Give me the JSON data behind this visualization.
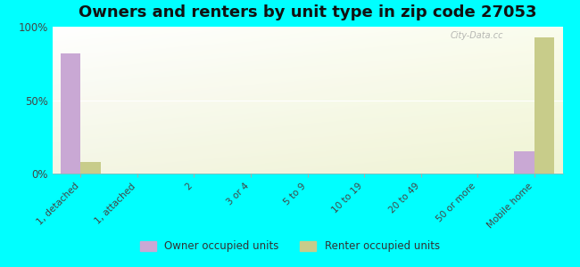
{
  "title": "Owners and renters by unit type in zip code 27053",
  "categories": [
    "1, detached",
    "1, attached",
    "2",
    "3 or 4",
    "5 to 9",
    "10 to 19",
    "20 to 49",
    "50 or more",
    "Mobile home"
  ],
  "owner_values": [
    82,
    0,
    0,
    0,
    0,
    0,
    0,
    0,
    15
  ],
  "renter_values": [
    8,
    0,
    0,
    0,
    0,
    0,
    0,
    0,
    93
  ],
  "owner_color": "#c9a8d4",
  "renter_color": "#c8cc8a",
  "background_color": "#00ffff",
  "ylabel_ticks": [
    "0%",
    "50%",
    "100%"
  ],
  "ytick_vals": [
    0,
    50,
    100
  ],
  "ylim": [
    0,
    100
  ],
  "bar_width": 0.35,
  "title_fontsize": 13,
  "legend_owner": "Owner occupied units",
  "legend_renter": "Renter occupied units",
  "watermark": "City-Data.cc"
}
